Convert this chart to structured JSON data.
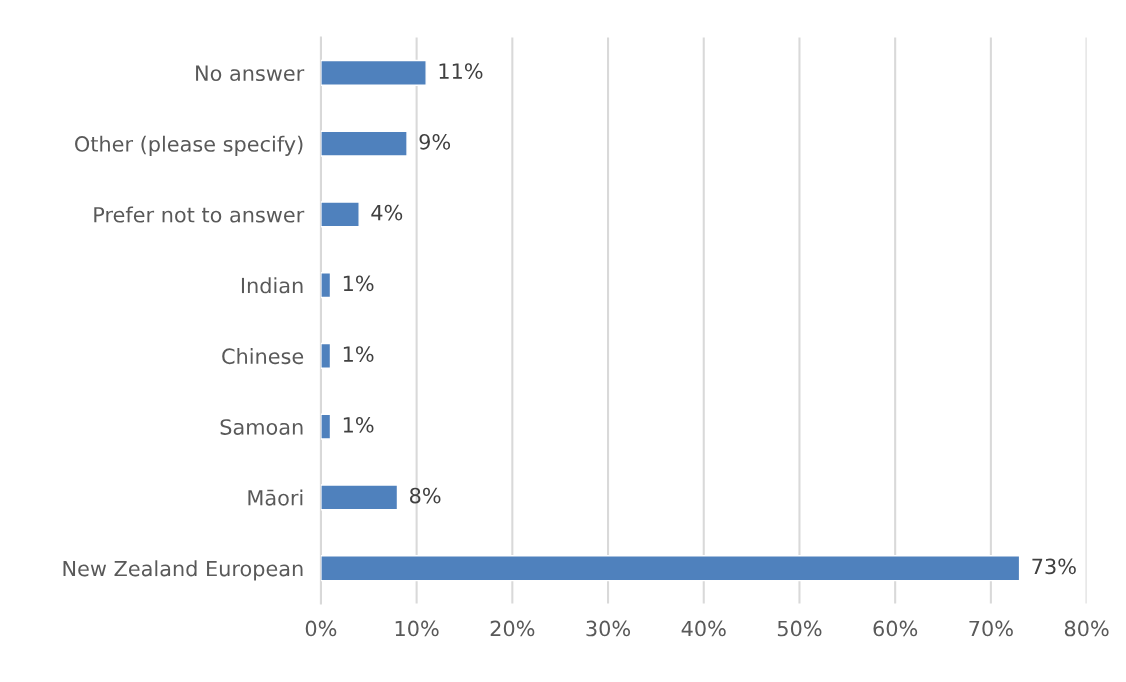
{
  "chart_data": {
    "type": "bar",
    "orientation": "horizontal",
    "categories": [
      "No answer",
      "Other (please specify)",
      "Prefer not to answer",
      "Indian",
      "Chinese",
      "Samoan",
      "Māori",
      "New Zealand European"
    ],
    "values": [
      11,
      9,
      4,
      1,
      1,
      1,
      8,
      73
    ],
    "value_labels": [
      "11%",
      "9%",
      "4%",
      "1%",
      "1%",
      "1%",
      "8%",
      "73%"
    ],
    "color": "#4f81bd",
    "xlim": [
      0,
      80
    ],
    "xticks": [
      {
        "value": 0,
        "label": "0%"
      },
      {
        "value": 10,
        "label": "10%"
      },
      {
        "value": 20,
        "label": "20%"
      },
      {
        "value": 30,
        "label": "30%"
      },
      {
        "value": 40,
        "label": "40%"
      },
      {
        "value": 50,
        "label": "50%"
      },
      {
        "value": 60,
        "label": "60%"
      },
      {
        "value": 70,
        "label": "70%"
      },
      {
        "value": 80,
        "label": "80%"
      }
    ],
    "grid": "x",
    "legend": false
  }
}
